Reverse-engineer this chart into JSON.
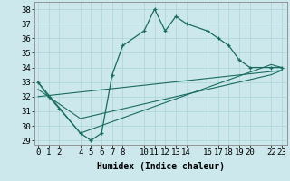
{
  "xlabel": "Humidex (Indice chaleur)",
  "background_color": "#cce8ec",
  "line_color": "#1a6b60",
  "grid_color": "#b0d8dc",
  "series": [
    {
      "x": [
        0,
        1,
        2,
        4,
        5,
        6,
        7,
        8,
        10,
        11,
        12,
        13,
        14,
        16,
        17,
        18,
        19,
        20,
        22,
        23
      ],
      "y": [
        33,
        32,
        31.2,
        29.5,
        29,
        29.5,
        33.5,
        35.5,
        36.5,
        38,
        36.5,
        37.5,
        37,
        36.5,
        36,
        35.5,
        34.5,
        34,
        34,
        34
      ],
      "marker": "+"
    },
    {
      "x": [
        0,
        4,
        22,
        23
      ],
      "y": [
        33,
        29.5,
        34.2,
        34
      ],
      "marker": null
    },
    {
      "x": [
        0,
        4,
        22,
        23
      ],
      "y": [
        32.5,
        30.5,
        33.5,
        33.8
      ],
      "marker": null
    },
    {
      "x": [
        0,
        23
      ],
      "y": [
        32,
        33.8
      ],
      "marker": null
    }
  ],
  "xlim": [
    -0.3,
    23.5
  ],
  "ylim": [
    28.7,
    38.5
  ],
  "xticks": [
    0,
    1,
    2,
    4,
    5,
    6,
    7,
    8,
    10,
    11,
    12,
    13,
    14,
    16,
    17,
    18,
    19,
    20,
    22,
    23
  ],
  "yticks": [
    29,
    30,
    31,
    32,
    33,
    34,
    35,
    36,
    37,
    38
  ],
  "fontsize": 6.5
}
